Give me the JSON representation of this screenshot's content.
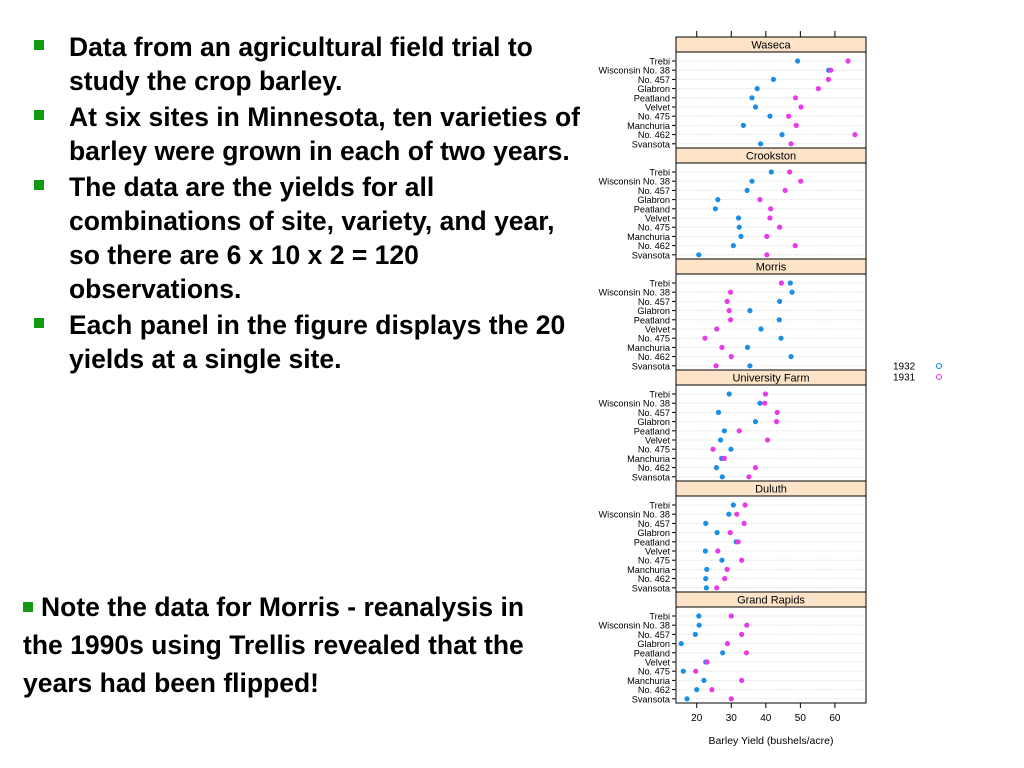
{
  "slide": {
    "bullets": [
      "Data from an agricultural field trial to study the crop barley.",
      "At six sites in Minnesota, ten varieties of barley were grown in each of two years.",
      "The data are the yields for all combinations of site, variety, and year, so there are 6 x 10 x 2 = 120 observations.",
      "Each panel in the figure displays the 20 yields at a single site."
    ],
    "note": "Note the data for Morris - reanalysis in the 1990s using Trellis revealed that the years had been flipped!"
  },
  "colors": {
    "bullet": "#129a12",
    "strip": "#fde4c8",
    "y1932": "#1a8fe8",
    "y1931": "#e83ae8"
  },
  "chart_data": {
    "type": "scatter",
    "xlabel": "Barley Yield (bushels/acre)",
    "xticks": [
      20,
      30,
      40,
      50,
      60
    ],
    "xlim": [
      14,
      69
    ],
    "legend": {
      "placement": "right",
      "entries": [
        "1932",
        "1931"
      ]
    },
    "varieties": [
      "Trebi",
      "Wisconsin No. 38",
      "No. 457",
      "Glabron",
      "Peatland",
      "Velvet",
      "No. 475",
      "Manchuria",
      "No. 462",
      "Svansota"
    ],
    "panels": [
      {
        "site": "Waseca",
        "y1932": [
          49.2,
          58.2,
          42.2,
          37.5,
          36.0,
          37.0,
          41.2,
          33.5,
          44.7,
          38.5
        ],
        "y1931": [
          63.8,
          58.8,
          58.1,
          55.2,
          48.6,
          50.2,
          46.6,
          48.8,
          65.8,
          47.3
        ]
      },
      {
        "site": "Crookston",
        "y1932": [
          41.6,
          36.0,
          34.6,
          26.1,
          25.4,
          32.1,
          32.3,
          32.8,
          30.6,
          20.6
        ],
        "y1931": [
          46.9,
          50.1,
          45.6,
          38.3,
          41.4,
          41.2,
          44.0,
          40.3,
          48.5,
          40.3
        ]
      },
      {
        "site": "Morris",
        "y1932": [
          47.1,
          47.6,
          44.0,
          35.4,
          43.9,
          38.6,
          44.4,
          34.7,
          47.3,
          35.4
        ],
        "y1931": [
          44.5,
          29.8,
          28.8,
          29.4,
          29.8,
          25.8,
          22.4,
          27.3,
          30.0,
          25.6
        ]
      },
      {
        "site": "University Farm",
        "y1932": [
          29.4,
          38.3,
          26.3,
          37.0,
          28.0,
          26.9,
          29.9,
          27.2,
          25.7,
          27.4
        ],
        "y1931": [
          39.9,
          39.7,
          43.3,
          43.1,
          32.3,
          40.5,
          24.7,
          28.0,
          37.0,
          35.1
        ]
      },
      {
        "site": "Duluth",
        "y1932": [
          30.6,
          29.3,
          22.6,
          25.9,
          31.4,
          22.5,
          27.3,
          22.9,
          22.6,
          22.8
        ],
        "y1931": [
          34.0,
          31.6,
          33.7,
          29.7,
          32.0,
          26.1,
          33.0,
          28.8,
          28.1,
          25.8
        ]
      },
      {
        "site": "Grand Rapids",
        "y1932": [
          20.6,
          20.7,
          19.6,
          15.5,
          27.5,
          22.6,
          16.1,
          22.1,
          20.0,
          17.2
        ],
        "y1931": [
          30.0,
          34.5,
          33.0,
          28.9,
          34.4,
          23.0,
          19.7,
          33.0,
          24.4,
          30.0
        ]
      }
    ]
  }
}
